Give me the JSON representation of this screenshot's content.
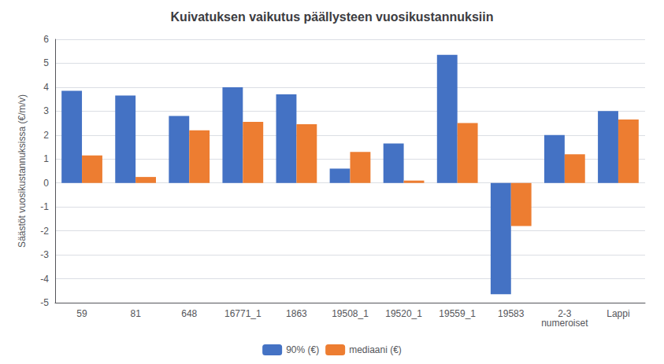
{
  "chart_data": {
    "type": "bar",
    "title": "Kuivatuksen vaikutus päällysteen vuosikustannuksiin",
    "ylabel": "Säästöt vuosikustannuksissa (€/m/v)",
    "categories": [
      "59",
      "81",
      "648",
      "16771_1",
      "1863",
      "19508_1",
      "19520_1",
      "19559_1",
      "19583",
      "2-3\nnumeroiset",
      "Lappi"
    ],
    "series": [
      {
        "name": "90% (€)",
        "color": "#4472C4",
        "values": [
          3.85,
          3.65,
          2.8,
          4.0,
          3.7,
          0.6,
          1.65,
          5.35,
          -4.65,
          2.0,
          3.0
        ]
      },
      {
        "name": "mediaani (€)",
        "color": "#ED7D31",
        "values": [
          1.15,
          0.25,
          2.2,
          2.55,
          2.45,
          1.3,
          0.1,
          2.5,
          -1.8,
          1.2,
          2.65
        ]
      }
    ],
    "ylim": [
      -5,
      6
    ],
    "yticks": [
      -5,
      -4,
      -3,
      -2,
      -1,
      0,
      1,
      2,
      3,
      4,
      5,
      6
    ],
    "grid": true,
    "legend": "bottom"
  }
}
